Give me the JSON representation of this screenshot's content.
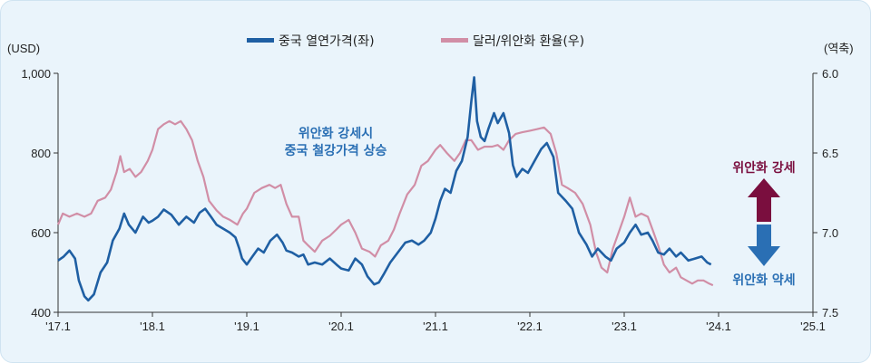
{
  "chart_data": {
    "type": "line",
    "left_unit": "(USD)",
    "right_unit": "(역축)",
    "x_ticks": [
      "'17.1",
      "'18.1",
      "'19.1",
      "'20.1",
      "'21.1",
      "'22.1",
      "'23.1",
      "'24.1",
      "'25.1"
    ],
    "x_range": [
      2017.0,
      2025.0
    ],
    "left_axis": {
      "ticks": [
        "1,000",
        "800",
        "600",
        "400"
      ],
      "values": [
        1000,
        800,
        600,
        400
      ],
      "range": [
        400,
        1000
      ]
    },
    "right_axis": {
      "ticks": [
        "6.0",
        "6.5",
        "7.0",
        "7.5"
      ],
      "values": [
        6.0,
        6.5,
        7.0,
        7.5
      ],
      "range": [
        6.0,
        7.5
      ],
      "inverted": true
    },
    "legend_position": "top-center",
    "series": [
      {
        "name": "중국 열연가격(좌)",
        "axis": "left",
        "color": "#1f5fa3",
        "points": [
          [
            2017.0,
            530
          ],
          [
            2017.06,
            540
          ],
          [
            2017.12,
            555
          ],
          [
            2017.18,
            535
          ],
          [
            2017.22,
            480
          ],
          [
            2017.28,
            440
          ],
          [
            2017.32,
            430
          ],
          [
            2017.38,
            445
          ],
          [
            2017.45,
            500
          ],
          [
            2017.52,
            525
          ],
          [
            2017.58,
            580
          ],
          [
            2017.65,
            610
          ],
          [
            2017.7,
            648
          ],
          [
            2017.75,
            620
          ],
          [
            2017.82,
            600
          ],
          [
            2017.9,
            640
          ],
          [
            2017.96,
            625
          ],
          [
            2018.0,
            630
          ],
          [
            2018.06,
            640
          ],
          [
            2018.12,
            658
          ],
          [
            2018.2,
            645
          ],
          [
            2018.28,
            620
          ],
          [
            2018.36,
            640
          ],
          [
            2018.44,
            625
          ],
          [
            2018.5,
            650
          ],
          [
            2018.56,
            660
          ],
          [
            2018.62,
            640
          ],
          [
            2018.68,
            620
          ],
          [
            2018.75,
            610
          ],
          [
            2018.82,
            600
          ],
          [
            2018.88,
            588
          ],
          [
            2018.92,
            560
          ],
          [
            2018.95,
            535
          ],
          [
            2019.0,
            520
          ],
          [
            2019.06,
            540
          ],
          [
            2019.12,
            560
          ],
          [
            2019.18,
            550
          ],
          [
            2019.25,
            580
          ],
          [
            2019.32,
            595
          ],
          [
            2019.38,
            575
          ],
          [
            2019.42,
            555
          ],
          [
            2019.48,
            550
          ],
          [
            2019.55,
            540
          ],
          [
            2019.6,
            545
          ],
          [
            2019.65,
            520
          ],
          [
            2019.72,
            525
          ],
          [
            2019.8,
            520
          ],
          [
            2019.88,
            535
          ],
          [
            2019.95,
            520
          ],
          [
            2020.0,
            510
          ],
          [
            2020.08,
            505
          ],
          [
            2020.15,
            535
          ],
          [
            2020.22,
            520
          ],
          [
            2020.28,
            490
          ],
          [
            2020.35,
            470
          ],
          [
            2020.4,
            475
          ],
          [
            2020.45,
            495
          ],
          [
            2020.52,
            525
          ],
          [
            2020.6,
            550
          ],
          [
            2020.68,
            575
          ],
          [
            2020.75,
            580
          ],
          [
            2020.82,
            570
          ],
          [
            2020.88,
            580
          ],
          [
            2020.95,
            600
          ],
          [
            2021.0,
            635
          ],
          [
            2021.05,
            680
          ],
          [
            2021.1,
            710
          ],
          [
            2021.16,
            700
          ],
          [
            2021.22,
            755
          ],
          [
            2021.28,
            780
          ],
          [
            2021.34,
            840
          ],
          [
            2021.38,
            930
          ],
          [
            2021.41,
            990
          ],
          [
            2021.44,
            880
          ],
          [
            2021.48,
            840
          ],
          [
            2021.52,
            830
          ],
          [
            2021.56,
            860
          ],
          [
            2021.62,
            900
          ],
          [
            2021.66,
            875
          ],
          [
            2021.72,
            900
          ],
          [
            2021.78,
            850
          ],
          [
            2021.82,
            770
          ],
          [
            2021.86,
            740
          ],
          [
            2021.92,
            760
          ],
          [
            2021.98,
            750
          ],
          [
            2022.05,
            780
          ],
          [
            2022.12,
            810
          ],
          [
            2022.18,
            825
          ],
          [
            2022.25,
            790
          ],
          [
            2022.3,
            700
          ],
          [
            2022.38,
            680
          ],
          [
            2022.45,
            660
          ],
          [
            2022.52,
            600
          ],
          [
            2022.6,
            570
          ],
          [
            2022.66,
            540
          ],
          [
            2022.72,
            560
          ],
          [
            2022.8,
            540
          ],
          [
            2022.86,
            530
          ],
          [
            2022.92,
            560
          ],
          [
            2023.0,
            575
          ],
          [
            2023.06,
            600
          ],
          [
            2023.12,
            620
          ],
          [
            2023.18,
            595
          ],
          [
            2023.25,
            600
          ],
          [
            2023.3,
            580
          ],
          [
            2023.36,
            550
          ],
          [
            2023.42,
            545
          ],
          [
            2023.48,
            560
          ],
          [
            2023.55,
            540
          ],
          [
            2023.6,
            550
          ],
          [
            2023.68,
            530
          ],
          [
            2023.75,
            535
          ],
          [
            2023.82,
            540
          ],
          [
            2023.88,
            525
          ],
          [
            2023.92,
            520
          ]
        ]
      },
      {
        "name": "달러/위안화 환율(우)",
        "axis": "right",
        "color": "#d18ea6",
        "points": [
          [
            2017.0,
            6.95
          ],
          [
            2017.05,
            6.88
          ],
          [
            2017.12,
            6.9
          ],
          [
            2017.2,
            6.88
          ],
          [
            2017.28,
            6.9
          ],
          [
            2017.35,
            6.88
          ],
          [
            2017.42,
            6.8
          ],
          [
            2017.5,
            6.78
          ],
          [
            2017.56,
            6.73
          ],
          [
            2017.62,
            6.62
          ],
          [
            2017.66,
            6.52
          ],
          [
            2017.7,
            6.62
          ],
          [
            2017.76,
            6.6
          ],
          [
            2017.82,
            6.65
          ],
          [
            2017.88,
            6.62
          ],
          [
            2017.95,
            6.55
          ],
          [
            2018.0,
            6.48
          ],
          [
            2018.06,
            6.35
          ],
          [
            2018.12,
            6.32
          ],
          [
            2018.18,
            6.3
          ],
          [
            2018.24,
            6.32
          ],
          [
            2018.3,
            6.3
          ],
          [
            2018.36,
            6.35
          ],
          [
            2018.42,
            6.42
          ],
          [
            2018.48,
            6.55
          ],
          [
            2018.54,
            6.65
          ],
          [
            2018.6,
            6.8
          ],
          [
            2018.68,
            6.86
          ],
          [
            2018.75,
            6.9
          ],
          [
            2018.82,
            6.92
          ],
          [
            2018.9,
            6.95
          ],
          [
            2018.96,
            6.88
          ],
          [
            2019.0,
            6.85
          ],
          [
            2019.08,
            6.75
          ],
          [
            2019.16,
            6.72
          ],
          [
            2019.24,
            6.7
          ],
          [
            2019.3,
            6.72
          ],
          [
            2019.36,
            6.7
          ],
          [
            2019.42,
            6.82
          ],
          [
            2019.48,
            6.9
          ],
          [
            2019.55,
            6.9
          ],
          [
            2019.6,
            7.05
          ],
          [
            2019.65,
            7.08
          ],
          [
            2019.72,
            7.12
          ],
          [
            2019.8,
            7.05
          ],
          [
            2019.88,
            7.02
          ],
          [
            2019.95,
            6.98
          ],
          [
            2020.0,
            6.95
          ],
          [
            2020.08,
            6.92
          ],
          [
            2020.15,
            7.0
          ],
          [
            2020.22,
            7.1
          ],
          [
            2020.3,
            7.12
          ],
          [
            2020.36,
            7.15
          ],
          [
            2020.42,
            7.08
          ],
          [
            2020.5,
            7.05
          ],
          [
            2020.56,
            6.98
          ],
          [
            2020.62,
            6.88
          ],
          [
            2020.7,
            6.76
          ],
          [
            2020.78,
            6.7
          ],
          [
            2020.85,
            6.58
          ],
          [
            2020.92,
            6.55
          ],
          [
            2021.0,
            6.48
          ],
          [
            2021.05,
            6.45
          ],
          [
            2021.12,
            6.5
          ],
          [
            2021.2,
            6.55
          ],
          [
            2021.26,
            6.5
          ],
          [
            2021.32,
            6.42
          ],
          [
            2021.38,
            6.42
          ],
          [
            2021.45,
            6.48
          ],
          [
            2021.52,
            6.46
          ],
          [
            2021.6,
            6.46
          ],
          [
            2021.66,
            6.45
          ],
          [
            2021.72,
            6.48
          ],
          [
            2021.78,
            6.42
          ],
          [
            2021.85,
            6.38
          ],
          [
            2021.92,
            6.37
          ],
          [
            2022.0,
            6.36
          ],
          [
            2022.08,
            6.35
          ],
          [
            2022.15,
            6.34
          ],
          [
            2022.22,
            6.38
          ],
          [
            2022.28,
            6.5
          ],
          [
            2022.34,
            6.7
          ],
          [
            2022.4,
            6.72
          ],
          [
            2022.48,
            6.75
          ],
          [
            2022.56,
            6.82
          ],
          [
            2022.64,
            6.95
          ],
          [
            2022.7,
            7.12
          ],
          [
            2022.76,
            7.22
          ],
          [
            2022.82,
            7.25
          ],
          [
            2022.88,
            7.1
          ],
          [
            2022.94,
            7.0
          ],
          [
            2023.0,
            6.9
          ],
          [
            2023.06,
            6.78
          ],
          [
            2023.12,
            6.9
          ],
          [
            2023.18,
            6.88
          ],
          [
            2023.25,
            6.9
          ],
          [
            2023.3,
            6.98
          ],
          [
            2023.36,
            7.08
          ],
          [
            2023.42,
            7.2
          ],
          [
            2023.48,
            7.25
          ],
          [
            2023.55,
            7.22
          ],
          [
            2023.6,
            7.28
          ],
          [
            2023.66,
            7.3
          ],
          [
            2023.72,
            7.32
          ],
          [
            2023.78,
            7.3
          ],
          [
            2023.84,
            7.3
          ],
          [
            2023.9,
            7.32
          ],
          [
            2023.94,
            7.33
          ]
        ]
      }
    ],
    "annotations": {
      "center_line1": "위안화 강세시",
      "center_line2": "중국 철강가격 상승",
      "strong": "위안화 강세",
      "weak": "위안화 약세",
      "strong_color": "#7a0e3e",
      "weak_color": "#1f5fa3"
    }
  }
}
